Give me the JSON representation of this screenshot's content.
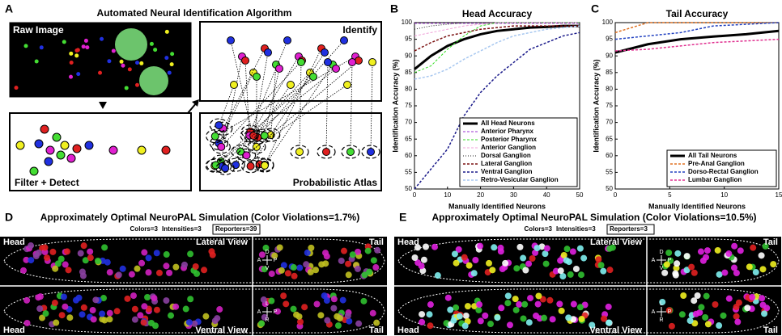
{
  "panel_a": {
    "letter": "A",
    "title": "Automated Neural Identification Algorithm",
    "raw": "Raw Image",
    "filter": "Filter + Detect",
    "identify": "Identify",
    "atlas": "Probabilistic Atlas"
  },
  "chart_data": [
    {
      "type": "line",
      "letter": "B",
      "title": "Head Accuracy",
      "xlabel": "Manually Identified Neurons",
      "ylabel": "Identification Accuracy (%)",
      "xlim": [
        0,
        50
      ],
      "xticks": [
        0,
        10,
        20,
        30,
        40,
        50
      ],
      "ylim": [
        50,
        100
      ],
      "yticks": [
        50,
        55,
        60,
        65,
        70,
        75,
        80,
        85,
        90,
        95,
        100
      ],
      "legend": "lower right",
      "x": [
        0,
        5,
        10,
        15,
        20,
        25,
        30,
        35,
        40,
        45,
        50
      ],
      "series": [
        {
          "name": "All Head Neurons",
          "color": "#000000",
          "linestyle": "solid",
          "linewidth": 3,
          "values": [
            86,
            90,
            93,
            95,
            96.5,
            97.5,
            98,
            98.5,
            98.7,
            99,
            99
          ]
        },
        {
          "name": "Anterior Pharynx",
          "color": "#9b30d0",
          "linestyle": "dashed",
          "linewidth": 1,
          "values": [
            99.8,
            99.8,
            99.8,
            99.8,
            99.8,
            99.8,
            99.8,
            99.8,
            99.8,
            99.8,
            99.8
          ]
        },
        {
          "name": "Posterior Pharynx",
          "color": "#33dd22",
          "linestyle": "dashed",
          "linewidth": 1,
          "values": [
            85,
            87,
            92,
            96,
            99,
            100,
            100,
            100,
            100,
            100,
            100
          ]
        },
        {
          "name": "Anterior Ganglion",
          "color": "#f0a0d8",
          "linestyle": "dashed",
          "linewidth": 1,
          "values": [
            96,
            97,
            98,
            99,
            99.5,
            100,
            100,
            100,
            100,
            100,
            100
          ]
        },
        {
          "name": "Dorsal Ganglion",
          "color": "#222222",
          "linestyle": "dotted",
          "linewidth": 1,
          "values": [
            98,
            99,
            99.5,
            100,
            100,
            100,
            100,
            100,
            100,
            100,
            100
          ]
        },
        {
          "name": "Lateral Ganglion",
          "color": "#7a1010",
          "linestyle": "dashed",
          "linewidth": 1.5,
          "values": [
            91.5,
            94,
            96,
            97,
            98,
            98.5,
            99,
            99,
            99,
            99,
            99
          ]
        },
        {
          "name": "Ventral Ganglion",
          "color": "#1a1a8a",
          "linestyle": "dashed",
          "linewidth": 1.5,
          "values": [
            50,
            56,
            62,
            72,
            79,
            84,
            88,
            92,
            94,
            96,
            97
          ]
        },
        {
          "name": "Retro-Vesicular Ganglion",
          "color": "#a8c8f0",
          "linestyle": "dashed",
          "linewidth": 1.5,
          "values": [
            83,
            84,
            86,
            89,
            91.5,
            94,
            96,
            97,
            98,
            98.5,
            99
          ]
        }
      ]
    },
    {
      "type": "line",
      "letter": "C",
      "title": "Tail Accuracy",
      "xlabel": "Manually Identified Neurons",
      "ylabel": "Identification Accuracy (%)",
      "xlim": [
        0,
        15
      ],
      "xticks": [
        0,
        5,
        10,
        15
      ],
      "ylim": [
        50,
        100
      ],
      "yticks": [
        50,
        55,
        60,
        65,
        70,
        75,
        80,
        85,
        90,
        95,
        100
      ],
      "legend": "lower right",
      "x": [
        0,
        3,
        6,
        9,
        12,
        15
      ],
      "series": [
        {
          "name": "All Tail Neurons",
          "color": "#000000",
          "linestyle": "solid",
          "linewidth": 3,
          "values": [
            91,
            93.5,
            95,
            95.8,
            96.5,
            97.5
          ]
        },
        {
          "name": "Pre-Anal Ganglion",
          "color": "#e07020",
          "linestyle": "dashed",
          "linewidth": 1.5,
          "values": [
            97,
            100,
            100,
            100,
            100,
            100
          ]
        },
        {
          "name": "Dorso-Rectal Ganglion",
          "color": "#2040c0",
          "linestyle": "dashed",
          "linewidth": 1.5,
          "values": [
            95,
            96,
            97,
            99,
            99.5,
            100
          ]
        },
        {
          "name": "Lumbar Ganglion",
          "color": "#e03090",
          "linestyle": "dashed",
          "linewidth": 1.5,
          "values": [
            91.5,
            92,
            93,
            94,
            94.5,
            95
          ]
        }
      ]
    }
  ],
  "panel_d": {
    "letter": "D",
    "title": "Approximately Optimal NeuroPAL Simulation (Color Violations=1.7%)",
    "colors": "Colors=3",
    "intensities": "Intensities=3",
    "reporters": "Reporters=39",
    "head_top": "Head",
    "lateral": "Lateral View",
    "tail_top": "Tail",
    "head_bottom": "Head",
    "ventral": "Ventral View",
    "tail_bottom": "Tail"
  },
  "panel_e": {
    "letter": "E",
    "title": "Approximately Optimal NeuroPAL Simulation (Color Violations=10.5%)",
    "colors": "Colors=3",
    "intensities": "Intensities=3",
    "reporters": "Reporters=3",
    "head_top": "Head",
    "lateral": "Lateral View",
    "tail_top": "Tail",
    "head_bottom": "Head",
    "ventral": "Ventral View",
    "tail_bottom": "Tail"
  },
  "compass": {
    "d": "D",
    "v": "V",
    "a": "A",
    "p": "P",
    "l": "L",
    "r": "R"
  }
}
